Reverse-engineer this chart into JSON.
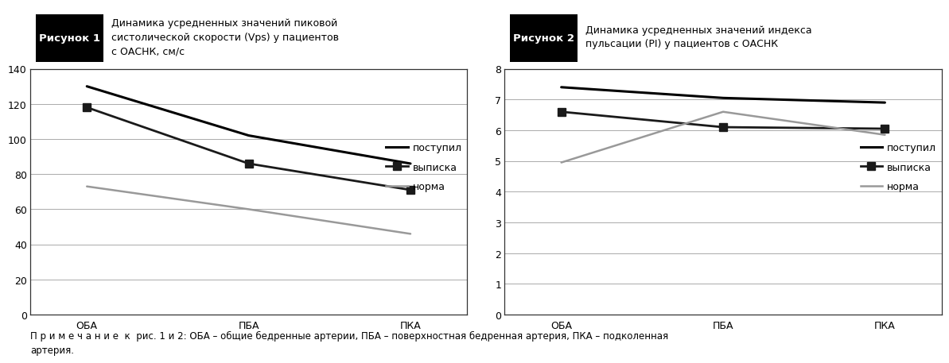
{
  "fig1": {
    "title_box": "Рисунок 1",
    "title_text": "Динамика усредненных значений пиковой\nсистолической скорости (Vps) у пациентов\nс ОАСНК, см/с",
    "categories": [
      "ОБА",
      "ПБА",
      "ПКА"
    ],
    "series": {
      "поступил": [
        130,
        102,
        86
      ],
      "выписка": [
        118,
        86,
        71
      ],
      "норма": [
        73,
        60,
        46
      ]
    },
    "ylim": [
      0,
      140
    ],
    "yticks": [
      0,
      20,
      40,
      60,
      80,
      100,
      120,
      140
    ],
    "line_colors": {
      "поступил": "#000000",
      "выписка": "#1a1a1a",
      "норма": "#999999"
    },
    "markers": {
      "поступил": "None",
      "выписка": "s",
      "норма": "None"
    },
    "linewidths": {
      "поступил": 2.2,
      "выписка": 2.0,
      "норма": 1.8
    }
  },
  "fig2": {
    "title_box": "Рисунок 2",
    "title_text": "Динамика усредненных значений индекса\nпульсации (PI) у пациентов с ОАСНК",
    "categories": [
      "ОБА",
      "ПБА",
      "ПКА"
    ],
    "series": {
      "поступил": [
        7.4,
        7.05,
        6.9
      ],
      "выписка": [
        6.6,
        6.1,
        6.05
      ],
      "норма": [
        4.95,
        6.6,
        5.85
      ]
    },
    "ylim": [
      0,
      8
    ],
    "yticks": [
      0,
      1,
      2,
      3,
      4,
      5,
      6,
      7,
      8
    ],
    "line_colors": {
      "поступил": "#000000",
      "выписка": "#1a1a1a",
      "норма": "#999999"
    },
    "markers": {
      "поступил": "None",
      "выписка": "s",
      "норма": "None"
    },
    "linewidths": {
      "поступил": 2.2,
      "выписка": 2.0,
      "норма": 1.8
    }
  },
  "legend_labels": [
    "поступил",
    "выписка",
    "норма"
  ],
  "header_bg": "#c0c0c0",
  "header_box_bg": "#000000",
  "header_box_fg": "#ffffff",
  "plot_bg": "#ffffff",
  "grid_color": "#aaaaaa",
  "outer_border_color": "#555555",
  "footnote": "П р и м е ч а н и е  к  рис. 1 и 2: ОБА – общие бедренные артерии, ПБА – поверхностная бедренная артерия, ПКА – подколенная\nартерия."
}
